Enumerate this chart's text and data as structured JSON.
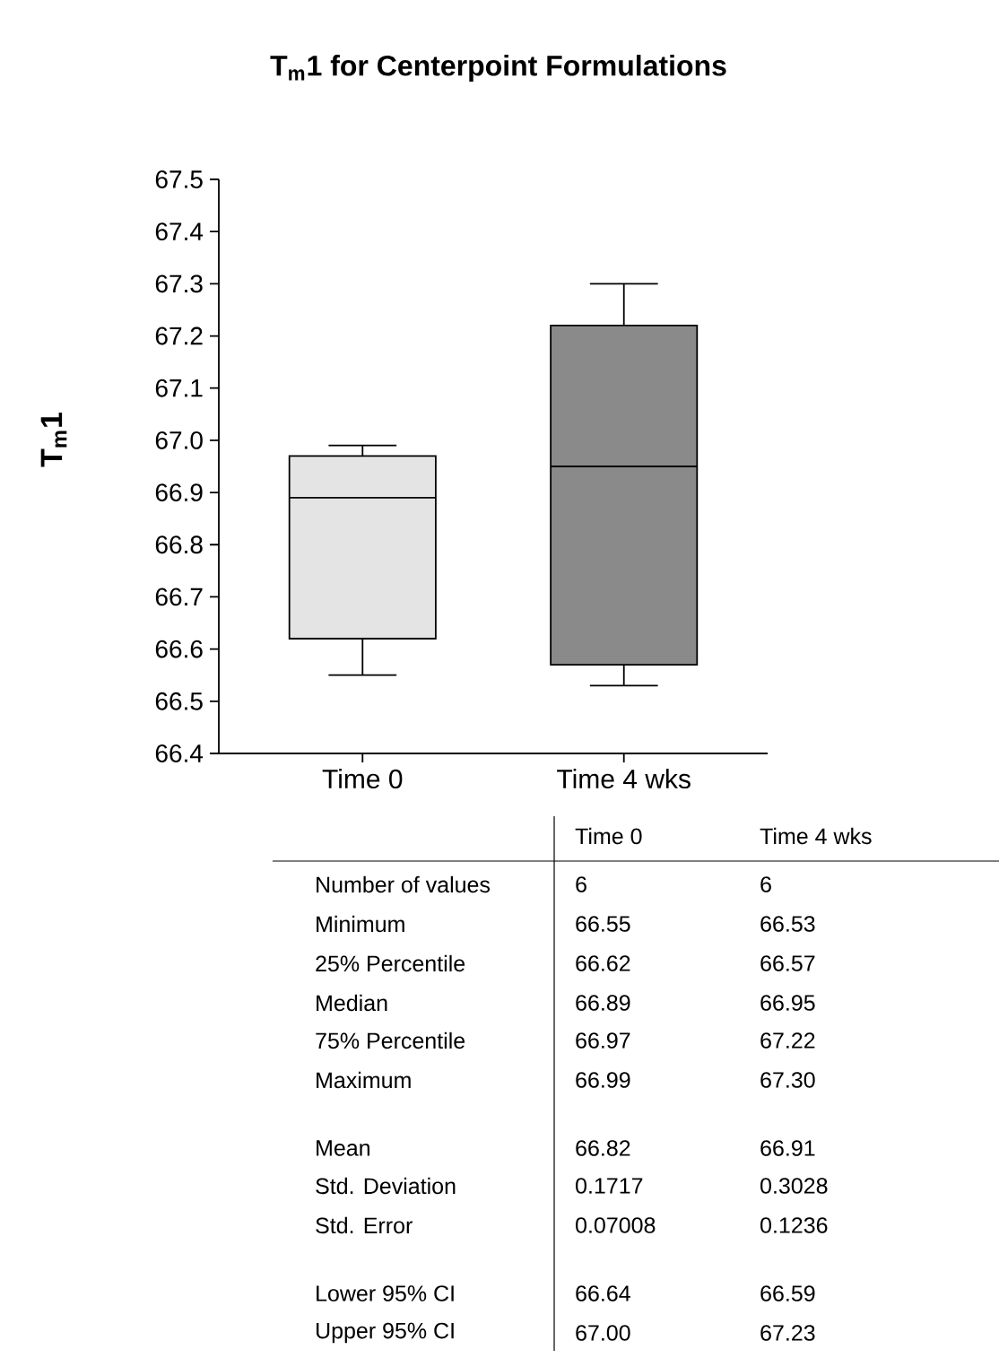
{
  "chart_data": {
    "type": "box",
    "title": "T$_{m}$1 for Centerpoint Formulations",
    "ylabel": "T$_{m}$1",
    "categories": [
      "Time 0",
      "Time 4 wks"
    ],
    "boxes": [
      {
        "low": 66.55,
        "q1": 66.62,
        "median": 66.89,
        "q3": 66.97,
        "high": 66.99
      },
      {
        "low": 66.53,
        "q1": 66.57,
        "median": 66.95,
        "q3": 67.22,
        "high": 67.3
      }
    ],
    "colors": [
      "#e4e4e4",
      "#8a8a8a"
    ],
    "ylim": [
      66.4,
      67.5
    ],
    "yticks": [
      66.4,
      66.5,
      66.6,
      66.7,
      66.8,
      66.9,
      {
        "value": 67,
        "label": "67.0"
      },
      67.1,
      67.2,
      67.3,
      67.4,
      67.5
    ],
    "annotations": [
      "Time 0",
      "Time 4 wks",
      "Number of values",
      "6",
      "6",
      "Minimum",
      "66.55",
      "66.53",
      "25% Percentile",
      "66.62",
      "66.57",
      "Median",
      "66.89",
      "66.95",
      "75% Percentile",
      "66.97",
      "67.22",
      "Maximum",
      "66.99",
      "67.30",
      "Mean",
      "66.82",
      "66.91",
      "Std. Deviation",
      "0.1717",
      "0.3028",
      "Std. Error",
      "0.07008",
      "0.1236",
      "Lower 95% CI",
      "66.64",
      "66.59",
      "Upper 95% CI",
      "67.00",
      "67.23"
    ]
  }
}
